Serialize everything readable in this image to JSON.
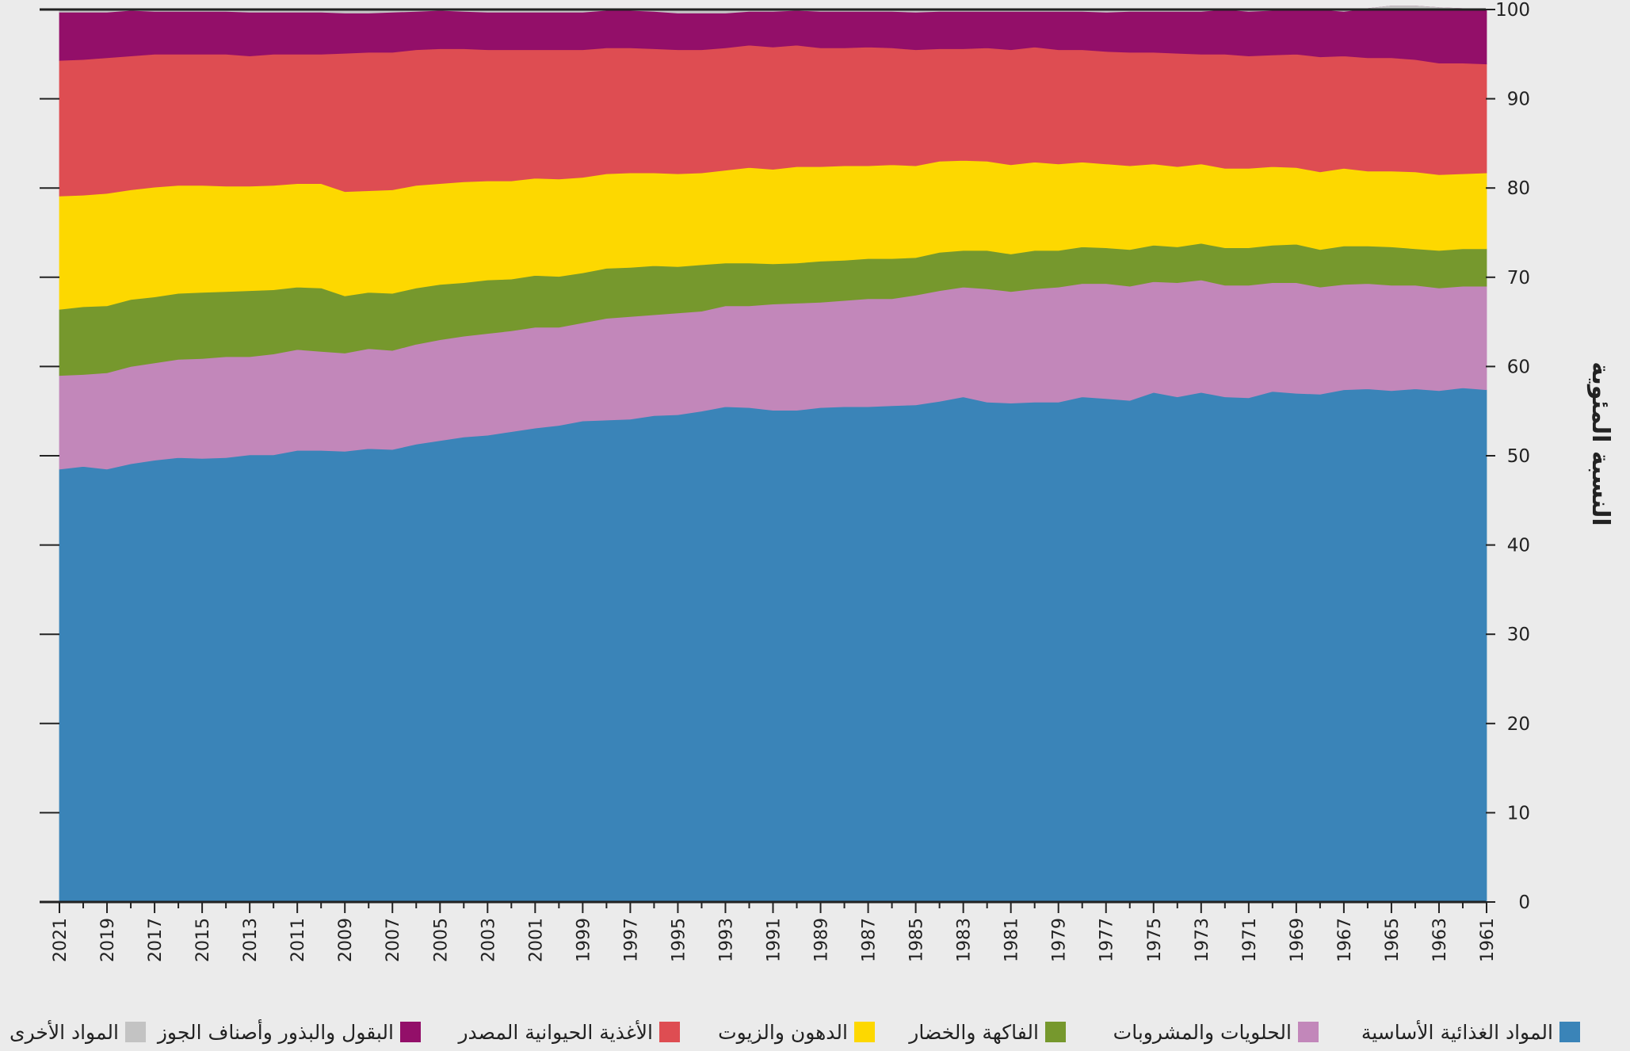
{
  "chart_data": {
    "type": "area",
    "stacked": true,
    "title": "",
    "xlabel": "",
    "ylabel": "النسبة المئوية",
    "ylim": [
      0,
      100
    ],
    "yticks": [
      0,
      10,
      20,
      30,
      40,
      50,
      60,
      70,
      80,
      90,
      100
    ],
    "x_reversed": true,
    "grid": false,
    "legend_position": "bottom",
    "categories": [
      2021,
      2020,
      2019,
      2018,
      2017,
      2016,
      2015,
      2014,
      2013,
      2012,
      2011,
      2010,
      2009,
      2008,
      2007,
      2006,
      2005,
      2004,
      2003,
      2002,
      2001,
      2000,
      1999,
      1998,
      1997,
      1996,
      1995,
      1994,
      1993,
      1992,
      1991,
      1990,
      1989,
      1988,
      1987,
      1986,
      1985,
      1984,
      1983,
      1982,
      1981,
      1980,
      1979,
      1978,
      1977,
      1976,
      1975,
      1974,
      1973,
      1972,
      1971,
      1970,
      1969,
      1968,
      1967,
      1966,
      1965,
      1964,
      1963,
      1962,
      1961
    ],
    "x_tick_labels": [
      "2021",
      "2019",
      "2017",
      "2015",
      "2013",
      "2011",
      "2009",
      "2007",
      "2005",
      "2003",
      "2001",
      "1999",
      "1997",
      "1995",
      "1993",
      "1991",
      "1989",
      "1987",
      "1985",
      "1983",
      "1981",
      "1979",
      "1977",
      "1975",
      "1973",
      "1971",
      "1969",
      "1967",
      "1965",
      "1963",
      "1961"
    ],
    "series": [
      {
        "name": "المواد الغذائية الأساسية",
        "color": "#3a84b8",
        "values": [
          48.5,
          48.8,
          48.5,
          49.1,
          49.5,
          49.8,
          49.7,
          49.8,
          50.1,
          50.1,
          50.6,
          50.6,
          50.5,
          50.8,
          50.7,
          51.3,
          51.7,
          52.1,
          52.3,
          52.7,
          53.1,
          53.4,
          53.9,
          54.0,
          54.1,
          54.5,
          54.6,
          55.0,
          55.5,
          55.4,
          55.1,
          55.1,
          55.4,
          55.5,
          55.5,
          55.6,
          55.7,
          56.1,
          56.6,
          56.0,
          55.9,
          56.0,
          56.0,
          56.6,
          56.4,
          56.2,
          57.1,
          56.6,
          57.1,
          56.6,
          56.5,
          57.2,
          57.0,
          56.9,
          57.4,
          57.5,
          57.3,
          57.5,
          57.3,
          57.6,
          57.4
        ]
      },
      {
        "name": "الحلويات والمشروبات",
        "color": "#c287ba",
        "values": [
          10.5,
          10.3,
          10.8,
          10.9,
          10.9,
          11.0,
          11.2,
          11.3,
          11.0,
          11.3,
          11.3,
          11.1,
          11.0,
          11.2,
          11.1,
          11.2,
          11.3,
          11.3,
          11.4,
          11.3,
          11.3,
          11.0,
          11.0,
          11.4,
          11.5,
          11.3,
          11.4,
          11.2,
          11.3,
          11.4,
          11.9,
          12.0,
          11.8,
          11.9,
          12.1,
          12.0,
          12.3,
          12.4,
          12.3,
          12.7,
          12.5,
          12.7,
          12.9,
          12.7,
          12.9,
          12.8,
          12.4,
          12.8,
          12.6,
          12.5,
          12.6,
          12.2,
          12.4,
          12.0,
          11.8,
          11.8,
          11.8,
          11.6,
          11.5,
          11.4,
          11.6
        ]
      },
      {
        "name": "الفاكهة والخضار",
        "color": "#76982d",
        "values": [
          7.4,
          7.6,
          7.5,
          7.5,
          7.4,
          7.4,
          7.4,
          7.3,
          7.4,
          7.2,
          7.0,
          7.1,
          6.4,
          6.3,
          6.4,
          6.3,
          6.2,
          6.0,
          6.0,
          5.8,
          5.8,
          5.7,
          5.6,
          5.6,
          5.5,
          5.5,
          5.2,
          5.2,
          4.8,
          4.8,
          4.5,
          4.5,
          4.6,
          4.5,
          4.5,
          4.5,
          4.2,
          4.3,
          4.1,
          4.3,
          4.2,
          4.3,
          4.1,
          4.1,
          4.0,
          4.1,
          4.1,
          4.0,
          4.1,
          4.2,
          4.2,
          4.2,
          4.3,
          4.2,
          4.3,
          4.2,
          4.3,
          4.1,
          4.2,
          4.2,
          4.2
        ]
      },
      {
        "name": "الدهون والزيوت",
        "color": "#fdd800",
        "values": [
          12.7,
          12.5,
          12.6,
          12.3,
          12.3,
          12.1,
          12.0,
          11.8,
          11.7,
          11.7,
          11.6,
          11.7,
          11.7,
          11.4,
          11.6,
          11.5,
          11.3,
          11.3,
          11.1,
          11.0,
          10.9,
          10.9,
          10.7,
          10.6,
          10.6,
          10.4,
          10.4,
          10.3,
          10.4,
          10.7,
          10.6,
          10.8,
          10.6,
          10.6,
          10.4,
          10.5,
          10.3,
          10.2,
          10.1,
          10.0,
          10.0,
          9.9,
          9.7,
          9.5,
          9.4,
          9.4,
          9.1,
          9.0,
          8.9,
          8.9,
          8.9,
          8.8,
          8.6,
          8.7,
          8.7,
          8.4,
          8.5,
          8.6,
          8.5,
          8.4,
          8.5
        ]
      },
      {
        "name": "الأغذية الحيوانية المصدر",
        "color": "#de4d52",
        "values": [
          15.2,
          15.2,
          15.2,
          15.0,
          14.9,
          14.7,
          14.7,
          14.8,
          14.6,
          14.7,
          14.5,
          14.5,
          15.5,
          15.5,
          15.4,
          15.2,
          15.1,
          14.9,
          14.7,
          14.7,
          14.4,
          14.5,
          14.3,
          14.1,
          14.0,
          13.9,
          13.9,
          13.8,
          13.7,
          13.7,
          13.7,
          13.6,
          13.3,
          13.2,
          13.3,
          13.1,
          13.0,
          12.6,
          12.5,
          12.7,
          12.9,
          12.9,
          12.8,
          12.6,
          12.6,
          12.7,
          12.5,
          12.7,
          12.3,
          12.8,
          12.6,
          12.5,
          12.7,
          12.9,
          12.6,
          12.7,
          12.7,
          12.6,
          12.5,
          12.4,
          12.2
        ]
      },
      {
        "name": "البقول والبذور وأصناف الجوز",
        "color": "#930f69",
        "values": [
          5.4,
          5.3,
          5.1,
          5.1,
          4.8,
          4.8,
          4.8,
          4.8,
          4.9,
          4.7,
          4.7,
          4.7,
          4.5,
          4.4,
          4.5,
          4.3,
          4.3,
          4.2,
          4.2,
          4.2,
          4.2,
          4.2,
          4.2,
          4.2,
          4.2,
          4.2,
          4.1,
          4.1,
          3.9,
          3.8,
          4.0,
          3.9,
          4.1,
          4.1,
          4.0,
          4.1,
          4.2,
          4.2,
          4.2,
          4.1,
          4.3,
          4.0,
          4.3,
          4.3,
          4.4,
          4.6,
          4.6,
          4.7,
          4.8,
          5.0,
          5.0,
          5.0,
          4.9,
          5.3,
          5.0,
          5.5,
          5.8,
          6.0,
          6.2,
          6.1,
          6.1
        ]
      },
      {
        "name": "المواد الأخرى",
        "color": "#c3c3c3",
        "values": [
          0.3,
          0.3,
          0.3,
          0.1,
          0.2,
          0.2,
          0.2,
          0.2,
          0.3,
          0.3,
          0.3,
          0.3,
          0.4,
          0.4,
          0.3,
          0.2,
          0.1,
          0.2,
          0.3,
          0.3,
          0.3,
          0.3,
          0.3,
          0.1,
          0.1,
          0.2,
          0.4,
          0.4,
          0.4,
          0.2,
          0.2,
          0.1,
          0.2,
          0.2,
          0.2,
          0.2,
          0.3,
          0.2,
          0.2,
          0.2,
          0.2,
          0.2,
          0.2,
          0.2,
          0.3,
          0.2,
          0.2,
          0.2,
          0.2,
          0.0,
          0.2,
          0.1,
          0.1,
          0.0,
          0.2,
          -0.1,
          -0.4,
          -0.4,
          -0.2,
          -0.1,
          0.0
        ]
      }
    ]
  }
}
